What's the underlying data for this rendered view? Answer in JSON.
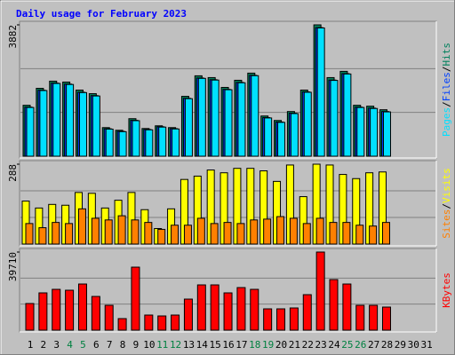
{
  "chart_data": [
    {
      "type": "bar",
      "title": "Daily usage for February 2023",
      "legend_separator": "/",
      "ylim": [
        0,
        3882
      ],
      "yticks": [
        3882
      ],
      "series": [
        {
          "name": "Hits",
          "color": "#00805c",
          "values": [
            1505,
            2006,
            2218,
            2191,
            1954,
            1848,
            845,
            766,
            1109,
            818,
            898,
            845,
            1769,
            2376,
            2323,
            2033,
            2244,
            2455,
            1188,
            1056,
            1320,
            1954,
            3882,
            2323,
            2508,
            1505,
            1478,
            1373,
            null,
            null,
            null
          ]
        },
        {
          "name": "Files",
          "color": "#0040ff",
          "values": [
            1450,
            1950,
            2160,
            2130,
            1890,
            1790,
            810,
            735,
            1060,
            790,
            870,
            815,
            1710,
            2310,
            2260,
            1975,
            2180,
            2390,
            1140,
            1010,
            1270,
            1900,
            3800,
            2250,
            2440,
            1450,
            1420,
            1320,
            null,
            null,
            null
          ]
        },
        {
          "name": "Pages",
          "color": "#00e0ff",
          "values": [
            1440,
            1940,
            2150,
            2120,
            1880,
            1780,
            800,
            725,
            1050,
            780,
            860,
            805,
            1700,
            2300,
            2250,
            1965,
            2170,
            2380,
            1130,
            1000,
            1260,
            1890,
            3790,
            2240,
            2430,
            1440,
            1410,
            1310,
            null,
            null,
            null
          ]
        }
      ]
    },
    {
      "type": "bar",
      "legend_separator": "/",
      "ylim": [
        0,
        288
      ],
      "yticks": [
        288
      ],
      "series": [
        {
          "name": "Visits",
          "color": "#ffff00",
          "values": [
            155,
            130,
            143,
            140,
            186,
            183,
            130,
            158,
            186,
            124,
            56,
            127,
            233,
            245,
            267,
            257,
            273,
            273,
            264,
            226,
            285,
            171,
            288,
            285,
            251,
            236,
            257,
            260,
            null,
            null,
            null
          ]
        },
        {
          "name": "Sites",
          "color": "#ff8000",
          "values": [
            74,
            59,
            78,
            74,
            127,
            93,
            87,
            102,
            87,
            78,
            53,
            68,
            68,
            93,
            74,
            78,
            74,
            87,
            90,
            99,
            93,
            74,
            93,
            78,
            78,
            68,
            65,
            78,
            null,
            null,
            null
          ]
        }
      ]
    },
    {
      "type": "bar",
      "ylim": [
        0,
        39710
      ],
      "yticks": [
        39710
      ],
      "categories": [
        "1",
        "2",
        "3",
        "4",
        "5",
        "6",
        "7",
        "8",
        "9",
        "10",
        "11",
        "12",
        "13",
        "14",
        "15",
        "16",
        "17",
        "18",
        "19",
        "20",
        "21",
        "22",
        "23",
        "24",
        "25",
        "26",
        "27",
        "28",
        "29",
        "30",
        "31"
      ],
      "category_colors": [
        "#000000",
        "#000000",
        "#000000",
        "#008040",
        "#008040",
        "#000000",
        "#000000",
        "#000000",
        "#000000",
        "#000000",
        "#008040",
        "#008040",
        "#000000",
        "#000000",
        "#000000",
        "#000000",
        "#000000",
        "#008040",
        "#008040",
        "#000000",
        "#000000",
        "#000000",
        "#000000",
        "#000000",
        "#008040",
        "#008040",
        "#000000",
        "#000000",
        "#000000",
        "#000000",
        "#000000"
      ],
      "series": [
        {
          "name": "KBytes",
          "color": "#ff0000",
          "values": [
            13540,
            18950,
            20750,
            20300,
            23460,
            17140,
            12630,
            5870,
            32030,
            7670,
            7220,
            7670,
            15790,
            23010,
            23010,
            18950,
            21650,
            20750,
            10830,
            10830,
            11280,
            18040,
            39710,
            25710,
            23460,
            12630,
            12630,
            11730,
            null,
            null,
            null
          ]
        }
      ]
    }
  ]
}
